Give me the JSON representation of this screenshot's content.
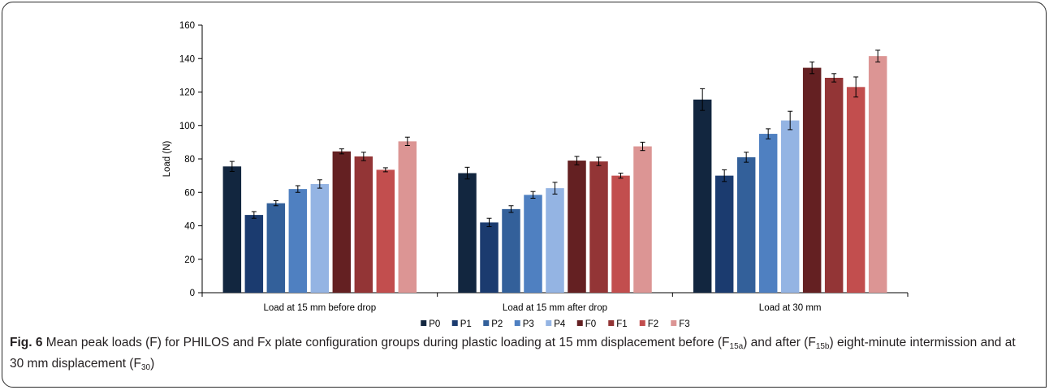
{
  "chart_data": {
    "type": "bar",
    "ylabel": "Load (N)",
    "ylim": [
      0,
      160
    ],
    "yticks": [
      "0",
      "20",
      "40",
      "60",
      "80",
      "100",
      "120",
      "140",
      "160"
    ],
    "categories": [
      "Load at 15 mm before drop",
      "Load at 15 mm after drop",
      "Load at 30 mm"
    ],
    "legend_position": "bottom",
    "grid": false,
    "series": [
      {
        "name": "P0",
        "color": "#12263f",
        "values": [
          75.5,
          71.5,
          115.5
        ],
        "errors": [
          3.0,
          3.5,
          6.5
        ]
      },
      {
        "name": "P1",
        "color": "#1b3b6f",
        "values": [
          46.5,
          42.0,
          70.0
        ],
        "errors": [
          2.0,
          2.5,
          3.5
        ]
      },
      {
        "name": "P2",
        "color": "#33609a",
        "values": [
          53.5,
          50.0,
          81.0
        ],
        "errors": [
          1.5,
          2.0,
          3.0
        ]
      },
      {
        "name": "P3",
        "color": "#4f80c1",
        "values": [
          62.0,
          58.5,
          95.0
        ],
        "errors": [
          2.0,
          2.0,
          3.0
        ]
      },
      {
        "name": "P4",
        "color": "#94b4e3",
        "values": [
          65.0,
          62.5,
          103.0
        ],
        "errors": [
          2.5,
          3.5,
          5.5
        ]
      },
      {
        "name": "F0",
        "color": "#642022",
        "values": [
          84.5,
          79.0,
          134.5
        ],
        "errors": [
          1.5,
          2.5,
          3.5
        ]
      },
      {
        "name": "F1",
        "color": "#933536",
        "values": [
          81.5,
          78.5,
          128.5
        ],
        "errors": [
          2.5,
          2.5,
          2.5
        ]
      },
      {
        "name": "F2",
        "color": "#c24e4e",
        "values": [
          73.5,
          70.0,
          123.0
        ],
        "errors": [
          1.2,
          1.5,
          6.0
        ]
      },
      {
        "name": "F3",
        "color": "#dc9594",
        "values": [
          90.5,
          87.5,
          141.5
        ],
        "errors": [
          2.5,
          2.5,
          3.5
        ]
      }
    ]
  },
  "caption": {
    "fig_label": "Fig. 6",
    "text1": " Mean peak loads (F) for PHILOS and Fx plate configuration groups during plastic loading at 15 mm displacement before (F",
    "sub1": "15a",
    "text2": ") and after (F",
    "sub2": "15b",
    "text3": ") eight-minute intermission and at 30 mm displacement (F",
    "sub3": "30",
    "text4": ")"
  }
}
